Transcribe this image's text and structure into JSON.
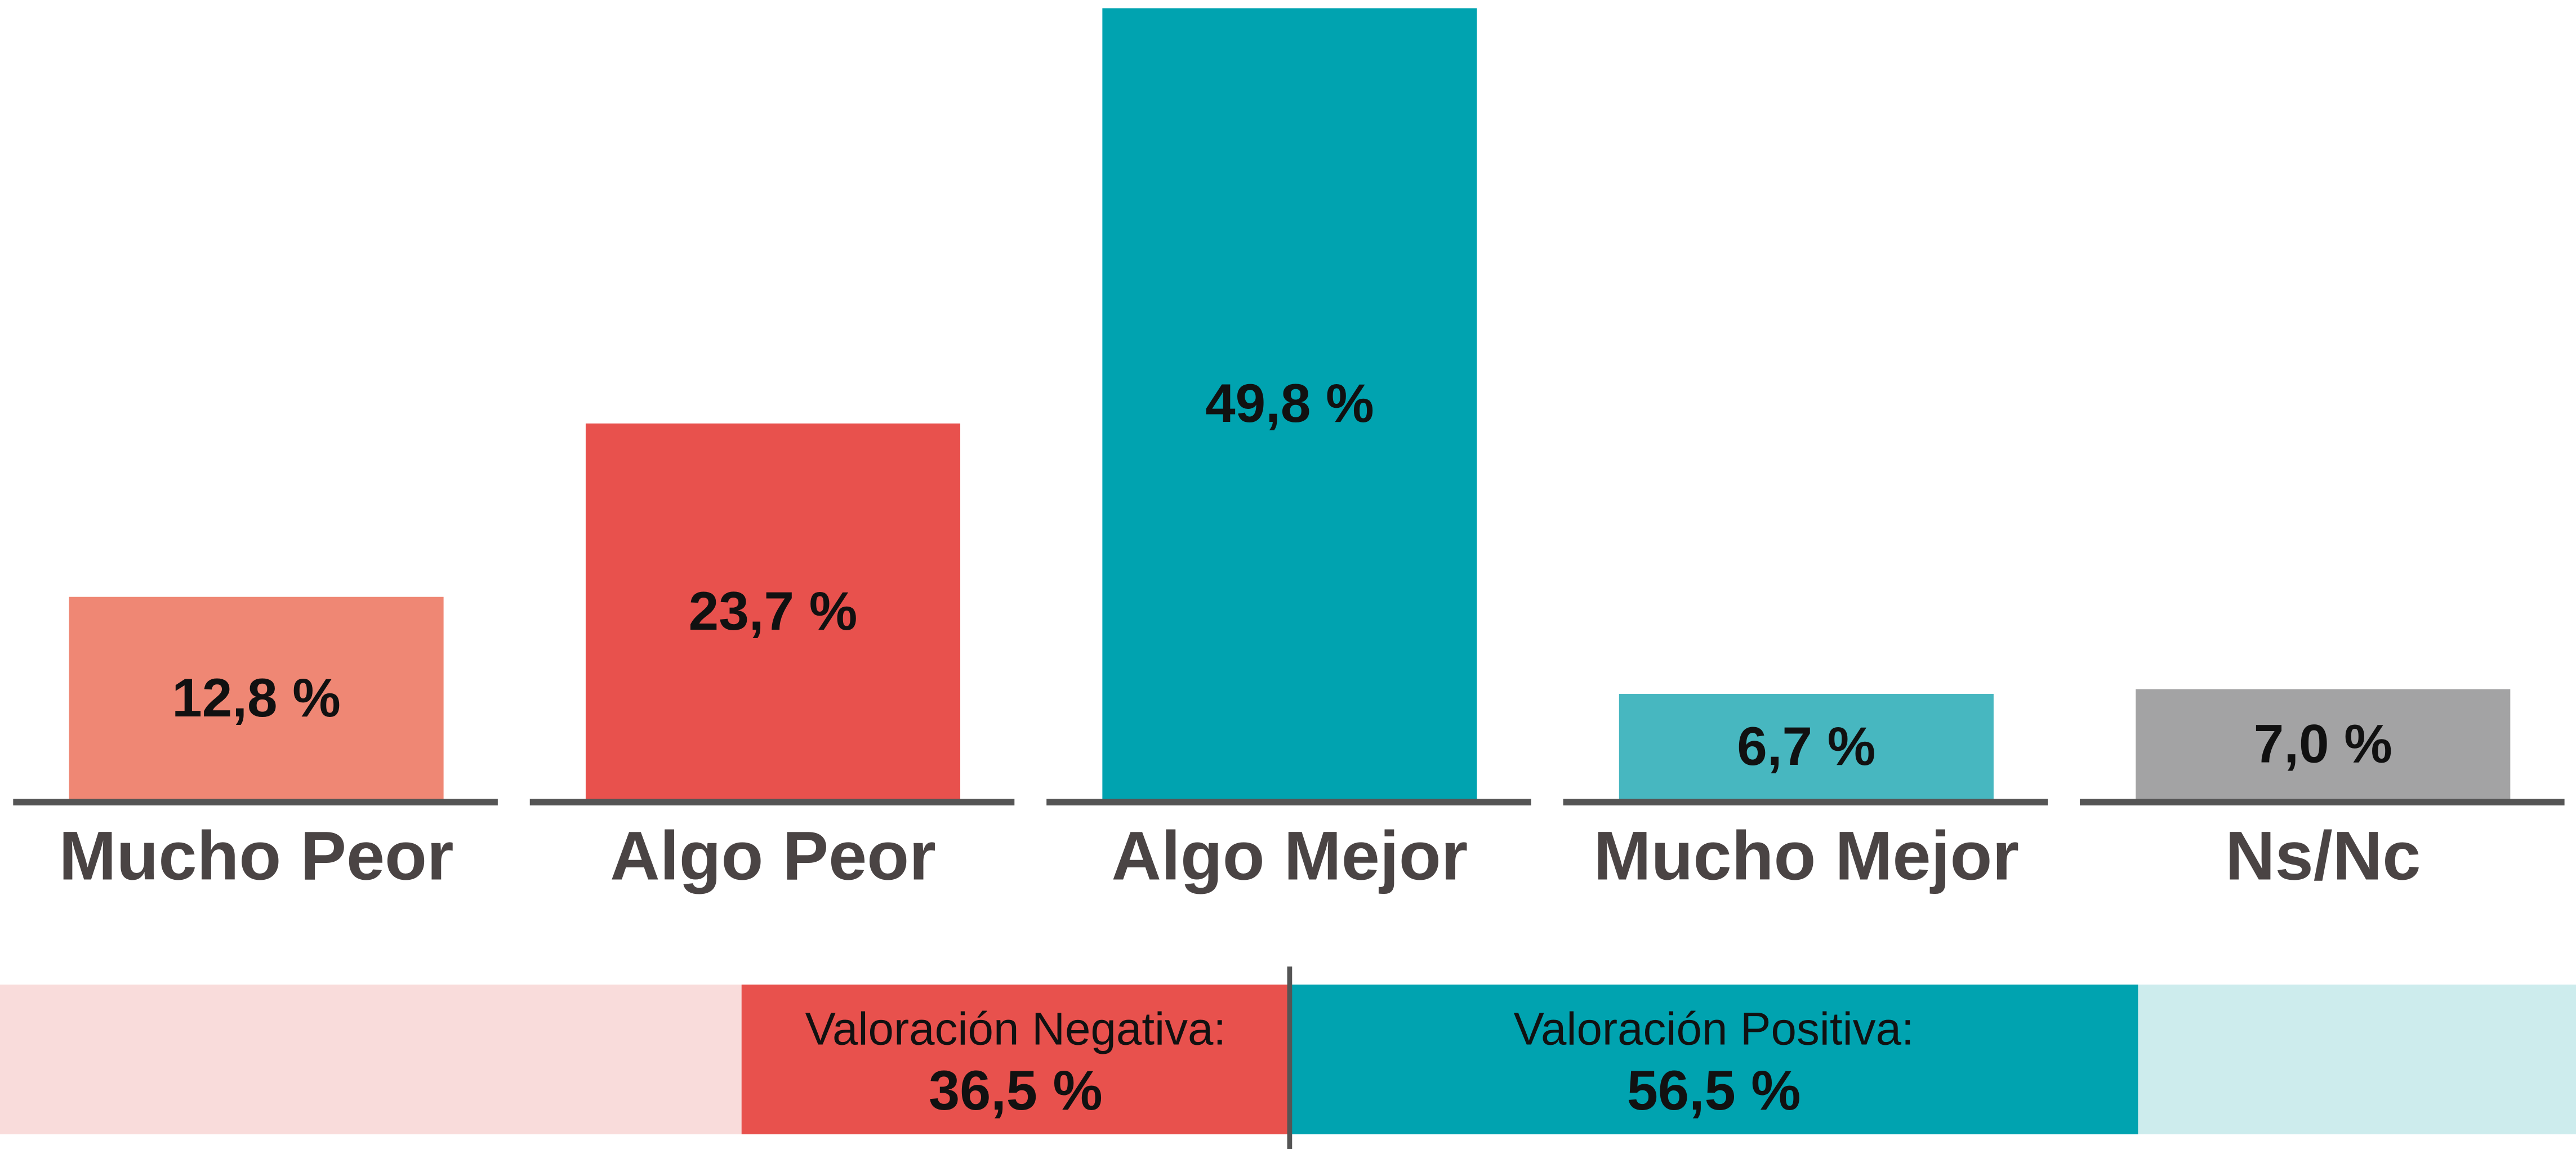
{
  "chart_data": [
    {
      "type": "bar",
      "categories": [
        "Mucho Peor",
        "Algo Peor",
        "Algo Mejor",
        "Mucho Mejor",
        "Ns/Nc"
      ],
      "values": [
        12.8,
        23.7,
        49.8,
        6.7,
        7.0
      ],
      "value_labels": [
        "12,8 %",
        "23,7 %",
        "49,8 %",
        "6,7 %",
        "7,0 %"
      ],
      "colors": [
        "#ef8774",
        "#e8514d",
        "#00a3b0",
        "#47b7c0",
        "#a3a3a4"
      ]
    },
    {
      "type": "diverging",
      "series": [
        {
          "name": "Valoración Negativa:",
          "color": "#e8514d",
          "values": [
            36.5
          ],
          "value_labels": [
            "36,5 %"
          ]
        },
        {
          "name": "Valoración Positiva:",
          "color": "#00a3b0",
          "values": [
            56.5
          ],
          "value_labels": [
            "56,5 %"
          ]
        }
      ]
    }
  ]
}
